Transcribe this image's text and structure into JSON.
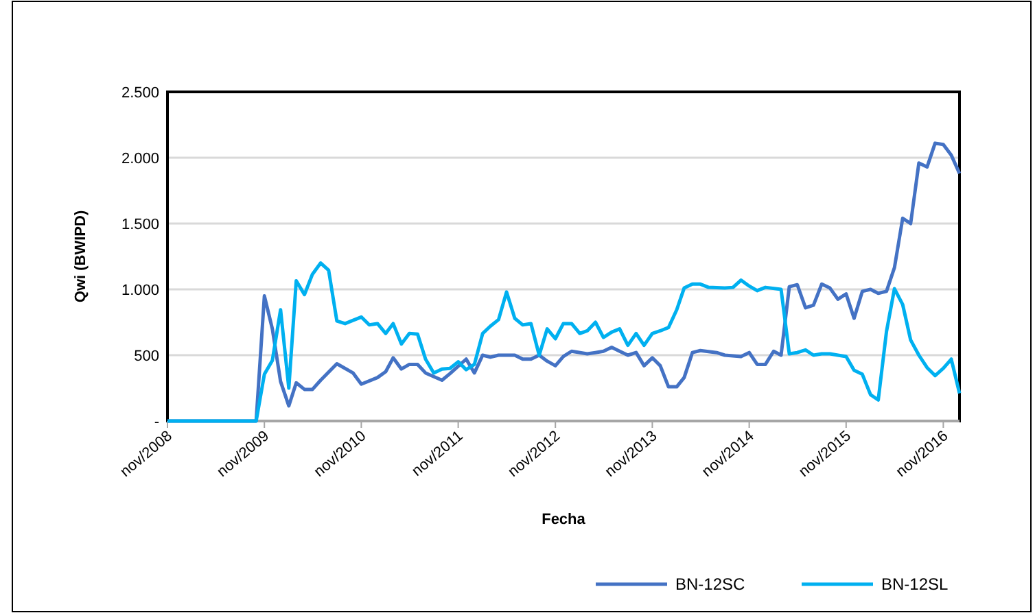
{
  "chart_data": {
    "type": "line",
    "xlabel": "Fecha",
    "ylabel": "Qwi (BWIPD)",
    "xlim": [
      "2008-11",
      "2017-01"
    ],
    "xticks": [
      {
        "value": "2008-11",
        "label": "nov/2008"
      },
      {
        "value": "2009-11",
        "label": "nov/2009"
      },
      {
        "value": "2010-11",
        "label": "nov/2010"
      },
      {
        "value": "2011-11",
        "label": "nov/2011"
      },
      {
        "value": "2012-11",
        "label": "nov/2012"
      },
      {
        "value": "2013-11",
        "label": "nov/2013"
      },
      {
        "value": "2014-11",
        "label": "nov/2014"
      },
      {
        "value": "2015-11",
        "label": "nov/2015"
      },
      {
        "value": "2016-11",
        "label": "nov/2016"
      }
    ],
    "ylim": [
      0,
      2500
    ],
    "yticks": [
      {
        "value": 0,
        "label": "-"
      },
      {
        "value": 500,
        "label": "500"
      },
      {
        "value": 1000,
        "label": "1.000"
      },
      {
        "value": 1500,
        "label": "1.500"
      },
      {
        "value": 2000,
        "label": "2.000"
      },
      {
        "value": 2500,
        "label": "2.500"
      }
    ],
    "grid": "y",
    "legend": "bottom right",
    "marker": "none",
    "line_style": "solid",
    "series": [
      {
        "name": "BN-12SC",
        "color": "#4472c4",
        "x": [
          "2008-11",
          "2009-10",
          "2009-11",
          "2009-12",
          "2010-01",
          "2010-02",
          "2010-03",
          "2010-04",
          "2010-05",
          "2010-06",
          "2010-08",
          "2010-10",
          "2010-11",
          "2011-01",
          "2011-02",
          "2011-03",
          "2011-04",
          "2011-05",
          "2011-06",
          "2011-07",
          "2011-09",
          "2011-10",
          "2011-12",
          "2012-01",
          "2012-02",
          "2012-03",
          "2012-04",
          "2012-06",
          "2012-07",
          "2012-08",
          "2012-09",
          "2012-10",
          "2012-11",
          "2012-12",
          "2013-01",
          "2013-03",
          "2013-04",
          "2013-05",
          "2013-06",
          "2013-07",
          "2013-08",
          "2013-09",
          "2013-10",
          "2013-11",
          "2013-12",
          "2014-01",
          "2014-02",
          "2014-03",
          "2014-04",
          "2014-05",
          "2014-07",
          "2014-08",
          "2014-10",
          "2014-11",
          "2014-12",
          "2015-01",
          "2015-02",
          "2015-03",
          "2015-04",
          "2015-05",
          "2015-06",
          "2015-07",
          "2015-08",
          "2015-09",
          "2015-10",
          "2015-11",
          "2015-12",
          "2016-01",
          "2016-02",
          "2016-03",
          "2016-04",
          "2016-05",
          "2016-06",
          "2016-07",
          "2016-08",
          "2016-09",
          "2016-10",
          "2016-11",
          "2016-12",
          "2017-01"
        ],
        "values": [
          0,
          0,
          950,
          700,
          300,
          115,
          290,
          240,
          240,
          310,
          435,
          365,
          280,
          330,
          375,
          480,
          395,
          430,
          430,
          365,
          310,
          360,
          470,
          365,
          500,
          485,
          500,
          500,
          470,
          470,
          500,
          455,
          420,
          490,
          530,
          510,
          520,
          530,
          560,
          530,
          500,
          520,
          420,
          480,
          420,
          260,
          260,
          330,
          520,
          535,
          520,
          500,
          490,
          520,
          430,
          430,
          530,
          500,
          1020,
          1035,
          860,
          880,
          1040,
          1010,
          925,
          965,
          780,
          985,
          1000,
          970,
          985,
          1165,
          1540,
          1500,
          1960,
          1930,
          2110,
          2100,
          2020,
          1880
        ]
      },
      {
        "name": "BN-12SL",
        "color": "#00b0f0",
        "x": [
          "2008-11",
          "2009-10",
          "2009-11",
          "2009-12",
          "2010-01",
          "2010-02",
          "2010-03",
          "2010-04",
          "2010-05",
          "2010-06",
          "2010-07",
          "2010-08",
          "2010-09",
          "2010-11",
          "2010-12",
          "2011-01",
          "2011-02",
          "2011-03",
          "2011-04",
          "2011-05",
          "2011-06",
          "2011-07",
          "2011-08",
          "2011-09",
          "2011-10",
          "2011-11",
          "2011-12",
          "2012-01",
          "2012-02",
          "2012-03",
          "2012-04",
          "2012-05",
          "2012-06",
          "2012-07",
          "2012-08",
          "2012-09",
          "2012-10",
          "2012-11",
          "2012-12",
          "2013-01",
          "2013-02",
          "2013-03",
          "2013-04",
          "2013-05",
          "2013-06",
          "2013-07",
          "2013-08",
          "2013-09",
          "2013-10",
          "2013-11",
          "2013-12",
          "2014-01",
          "2014-02",
          "2014-03",
          "2014-04",
          "2014-05",
          "2014-06",
          "2014-08",
          "2014-09",
          "2014-10",
          "2014-11",
          "2014-12",
          "2015-01",
          "2015-03",
          "2015-04",
          "2015-05",
          "2015-06",
          "2015-07",
          "2015-08",
          "2015-09",
          "2015-10",
          "2015-11",
          "2015-12",
          "2016-01",
          "2016-02",
          "2016-03",
          "2016-04",
          "2016-05",
          "2016-06",
          "2016-07",
          "2016-08",
          "2016-09",
          "2016-10",
          "2016-11",
          "2016-12",
          "2017-01"
        ],
        "values": [
          0,
          0,
          355,
          460,
          845,
          250,
          1065,
          960,
          1115,
          1200,
          1145,
          760,
          740,
          790,
          730,
          740,
          665,
          740,
          585,
          665,
          660,
          470,
          365,
          395,
          400,
          450,
          390,
          430,
          665,
          720,
          770,
          980,
          780,
          730,
          740,
          500,
          700,
          625,
          740,
          740,
          665,
          685,
          750,
          635,
          675,
          700,
          575,
          665,
          575,
          665,
          685,
          710,
          845,
          1010,
          1040,
          1040,
          1015,
          1010,
          1015,
          1070,
          1025,
          990,
          1015,
          1000,
          510,
          520,
          540,
          500,
          510,
          510,
          500,
          490,
          385,
          355,
          200,
          160,
          680,
          1005,
          885,
          615,
          500,
          405,
          345,
          400,
          470,
          210
        ]
      }
    ]
  }
}
